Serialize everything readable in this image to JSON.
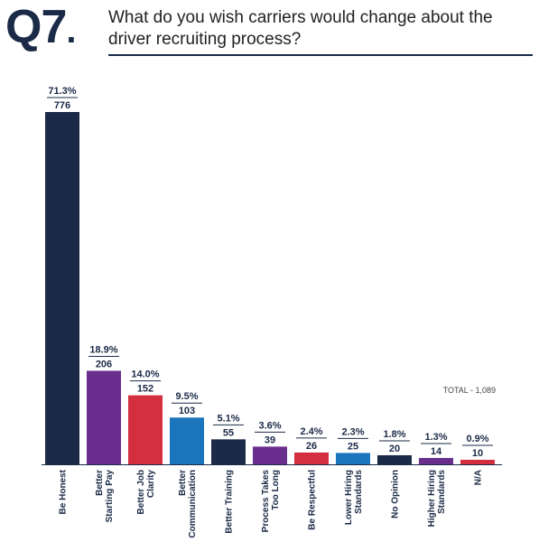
{
  "header": {
    "qnum": "Q7",
    "qdot": ".",
    "question": "What do you wish carriers would change about the driver recruiting process?"
  },
  "colors": {
    "navy": "#1b2a47",
    "purple": "#6a2e8f",
    "red": "#d32f3f",
    "blue": "#1b75bc"
  },
  "chart_data": {
    "type": "bar",
    "total_label": "TOTAL - 1,089",
    "categories": [
      [
        "Be Honest"
      ],
      [
        "Better",
        "Starting Pay"
      ],
      [
        "Better Job",
        "Clarity"
      ],
      [
        "Better",
        "Communication"
      ],
      [
        "Better Training"
      ],
      [
        "Process Takes",
        "Too Long"
      ],
      [
        "Be Respectful"
      ],
      [
        "Lower Hiring",
        "Standards"
      ],
      [
        "No Opinion"
      ],
      [
        "Higher Hiring",
        "Standards"
      ],
      [
        "N/A"
      ]
    ],
    "percents": [
      "71.3%",
      "18.9%",
      "14.0%",
      "9.5%",
      "5.1%",
      "3.6%",
      "2.4%",
      "2.3%",
      "1.8%",
      "1.3%",
      "0.9%"
    ],
    "values": [
      776,
      206,
      152,
      103,
      55,
      39,
      26,
      25,
      20,
      14,
      10
    ],
    "bar_colors": [
      "#1b2a47",
      "#6a2e8f",
      "#d32f3f",
      "#1b75bc",
      "#1b2a47",
      "#6a2e8f",
      "#d32f3f",
      "#1b75bc",
      "#1b2a47",
      "#6a2e8f",
      "#d32f3f"
    ],
    "ylim": [
      0,
      776
    ]
  }
}
